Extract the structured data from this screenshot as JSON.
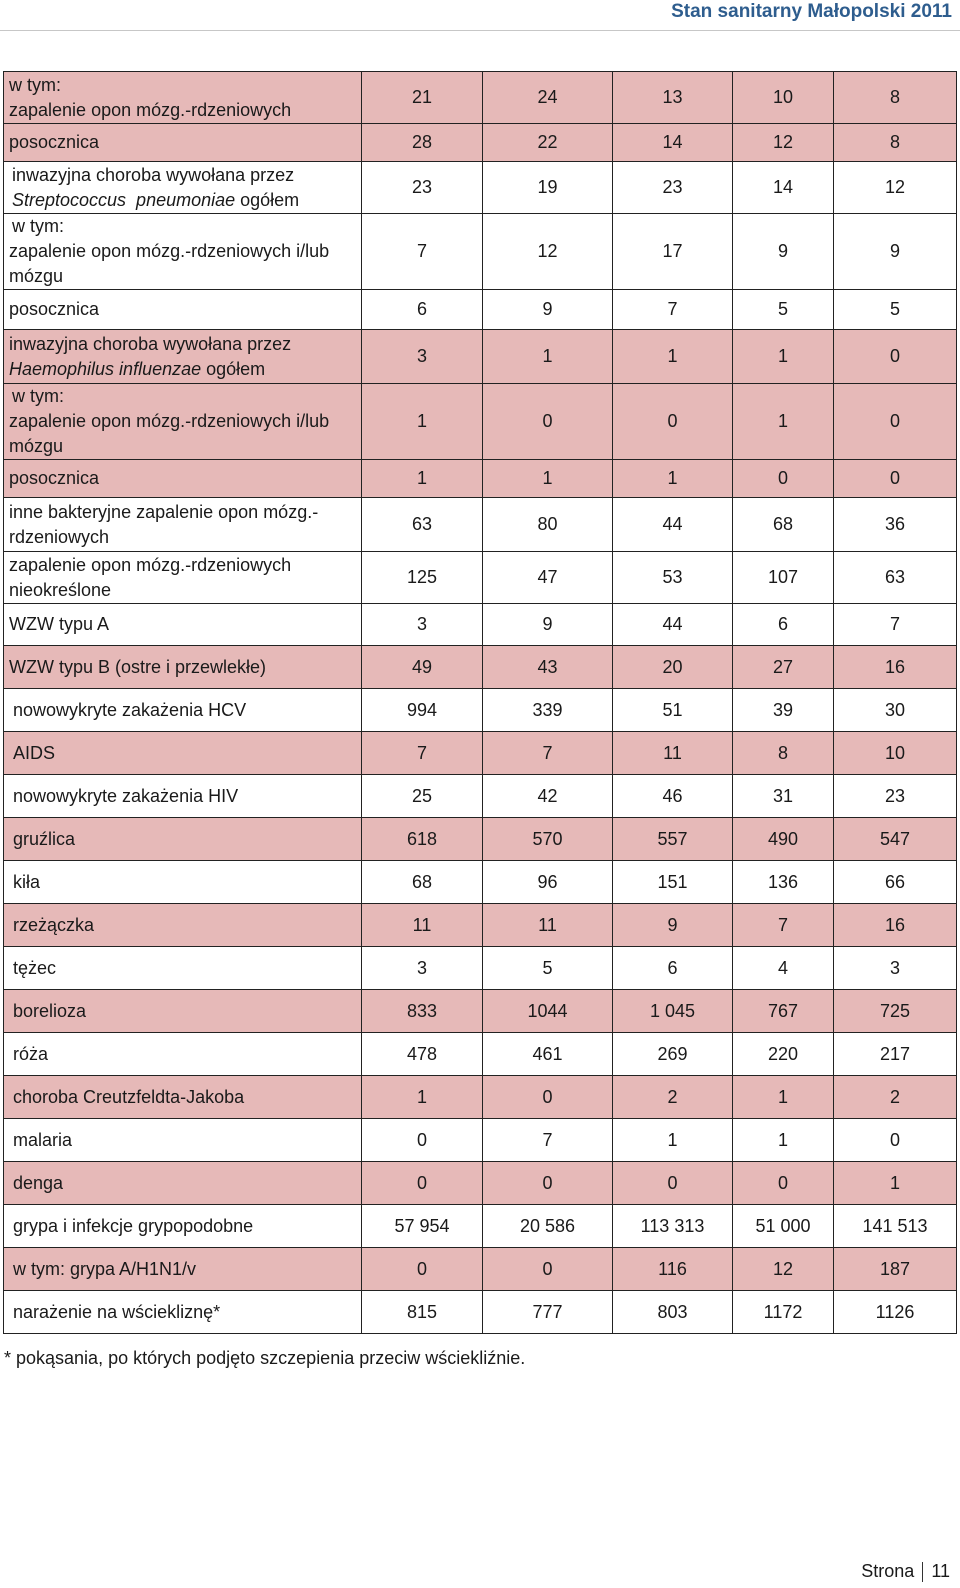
{
  "header": {
    "title": "Stan sanitarny Małopolski 2011"
  },
  "rows": [
    {
      "label": [
        "w tym:",
        "zapalenie opon mózg.-rdzeniowych"
      ],
      "values": [
        "21",
        "24",
        "13",
        "10",
        "8"
      ]
    },
    {
      "label": [
        "posocznica"
      ],
      "values": [
        "28",
        "22",
        "14",
        "12",
        "8"
      ]
    },
    {
      "label": [
        "inwazyjna choroba wywołana przez",
        "Streptococcus  pneumoniae ogółem"
      ],
      "values": [
        "23",
        "19",
        "23",
        "14",
        "12"
      ]
    },
    {
      "label": [
        "w tym:",
        "zapalenie opon mózg.-rdzeniowych i/lub",
        "mózgu"
      ],
      "values": [
        "7",
        "12",
        "17",
        "9",
        "9"
      ]
    },
    {
      "label": [
        "posocznica"
      ],
      "values": [
        "6",
        "9",
        "7",
        "5",
        "5"
      ]
    },
    {
      "label": [
        "inwazyjna choroba wywołana przez",
        "Haemophilus influenzae ogółem"
      ],
      "values": [
        "3",
        "1",
        "1",
        "1",
        "0"
      ]
    },
    {
      "label": [
        "w tym:",
        "zapalenie opon mózg.-rdzeniowych i/lub",
        "mózgu"
      ],
      "values": [
        "1",
        "0",
        "0",
        "1",
        "0"
      ]
    },
    {
      "label": [
        "posocznica"
      ],
      "values": [
        "1",
        "1",
        "1",
        "0",
        "0"
      ]
    },
    {
      "label": [
        "inne bakteryjne zapalenie opon mózg.-",
        "rdzeniowych"
      ],
      "values": [
        "63",
        "80",
        "44",
        "68",
        "36"
      ]
    },
    {
      "label": [
        "zapalenie opon mózg.-rdzeniowych",
        "nieokreślone"
      ],
      "values": [
        "125",
        "47",
        "53",
        "107",
        "63"
      ]
    },
    {
      "label": [
        "WZW typu A"
      ],
      "values": [
        "3",
        "9",
        "44",
        "6",
        "7"
      ]
    },
    {
      "label": [
        "WZW typu B (ostre i przewlekłe)"
      ],
      "values": [
        "49",
        "43",
        "20",
        "27",
        "16"
      ]
    },
    {
      "label": [
        "nowowykryte zakażenia HCV"
      ],
      "values": [
        "994",
        "339",
        "51",
        "39",
        "30"
      ]
    },
    {
      "label": [
        "AIDS"
      ],
      "values": [
        "7",
        "7",
        "11",
        "8",
        "10"
      ]
    },
    {
      "label": [
        "nowowykryte zakażenia HIV"
      ],
      "values": [
        "25",
        "42",
        "46",
        "31",
        "23"
      ]
    },
    {
      "label": [
        "gruźlica"
      ],
      "values": [
        "618",
        "570",
        "557",
        "490",
        "547"
      ]
    },
    {
      "label": [
        "kiła"
      ],
      "values": [
        "68",
        "96",
        "151",
        "136",
        "66"
      ]
    },
    {
      "label": [
        "rzeżączka"
      ],
      "values": [
        "11",
        "11",
        "9",
        "7",
        "16"
      ]
    },
    {
      "label": [
        "tężec"
      ],
      "values": [
        "3",
        "5",
        "6",
        "4",
        "3"
      ]
    },
    {
      "label": [
        "borelioza"
      ],
      "values": [
        "833",
        "1044",
        "1 045",
        "767",
        "725"
      ]
    },
    {
      "label": [
        "róża"
      ],
      "values": [
        "478",
        "461",
        "269",
        "220",
        "217"
      ]
    },
    {
      "label": [
        "choroba Creutzfeldta-Jakoba"
      ],
      "values": [
        "1",
        "0",
        "2",
        "1",
        "2"
      ]
    },
    {
      "label": [
        "malaria"
      ],
      "values": [
        "0",
        "7",
        "1",
        "1",
        "0"
      ]
    },
    {
      "label": [
        "denga"
      ],
      "values": [
        "0",
        "0",
        "0",
        "0",
        "1"
      ]
    },
    {
      "label": [
        "grypa i infekcje grypopodobne"
      ],
      "values": [
        "57 954",
        "20 586",
        "113 313",
        "51 000",
        "141 513"
      ]
    },
    {
      "label": [
        "w tym: grypa A/H1N1/v"
      ],
      "values": [
        "0",
        "0",
        "116",
        "12",
        "187"
      ]
    },
    {
      "label": [
        "narażenie na wściekliznę*"
      ],
      "values": [
        "815",
        "777",
        "803",
        "1172",
        "1126"
      ]
    }
  ],
  "footnote": "* pokąsania, po których podjęto szczepienia przeciw wściekliźnie.",
  "footer": {
    "label": "Strona",
    "page": "11"
  },
  "colors": {
    "pink": "#e6b9b8",
    "header": "#2e5d8e",
    "border": "#222222"
  }
}
